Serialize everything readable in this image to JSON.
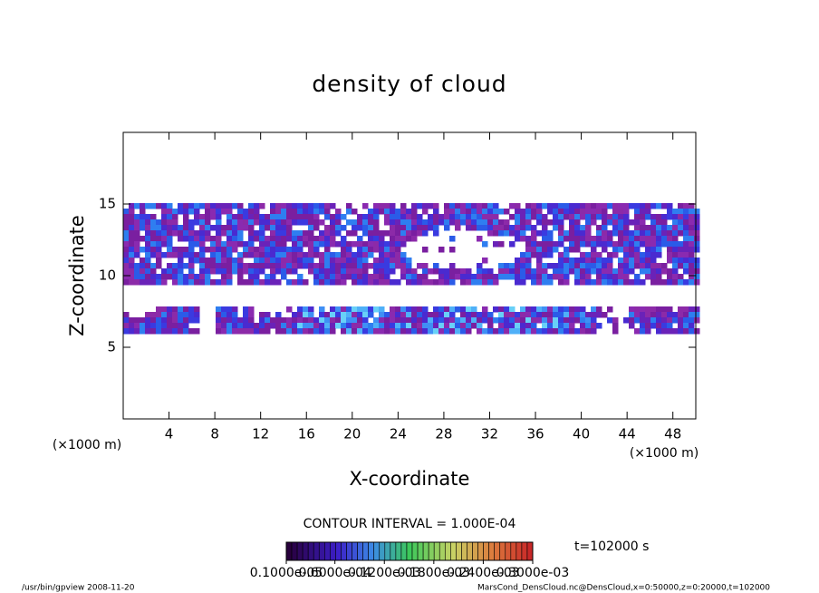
{
  "chart_data": {
    "type": "contour",
    "title": "density of cloud",
    "xlabel": "X-coordinate",
    "ylabel": "Z-coordinate",
    "x_unit": "(×1000 m)",
    "y_unit": "(×1000 m)",
    "xlim": [
      0,
      50
    ],
    "ylim": [
      0,
      20
    ],
    "xticks": [
      4,
      8,
      12,
      16,
      20,
      24,
      28,
      32,
      36,
      40,
      44,
      48
    ],
    "yticks": [
      5,
      10,
      15
    ],
    "contour_interval": "CONTOUR INTERVAL = 1.000E-04",
    "time": "t=102000 s",
    "colorbar_ticks": [
      {
        "value": 1e-06,
        "label": "0.1000e-05"
      },
      {
        "value": 6e-05,
        "label": "0.6000e-04"
      },
      {
        "value": 0.00012,
        "label": "0.1200e-03"
      },
      {
        "value": 0.00018,
        "label": "0.1800e-03"
      },
      {
        "value": 0.00024,
        "label": "0.2400e-03"
      },
      {
        "value": 0.0003,
        "label": "0.3000e-03"
      }
    ],
    "colorbar_lim": [
      1e-06,
      0.0003
    ],
    "footer_left": "/usr/bin/gpview  2008-11-20",
    "footer_right": "MarsCond_DensCloud.nc@DensCloud,x=0:50000,z=0:20000,t=102000"
  }
}
